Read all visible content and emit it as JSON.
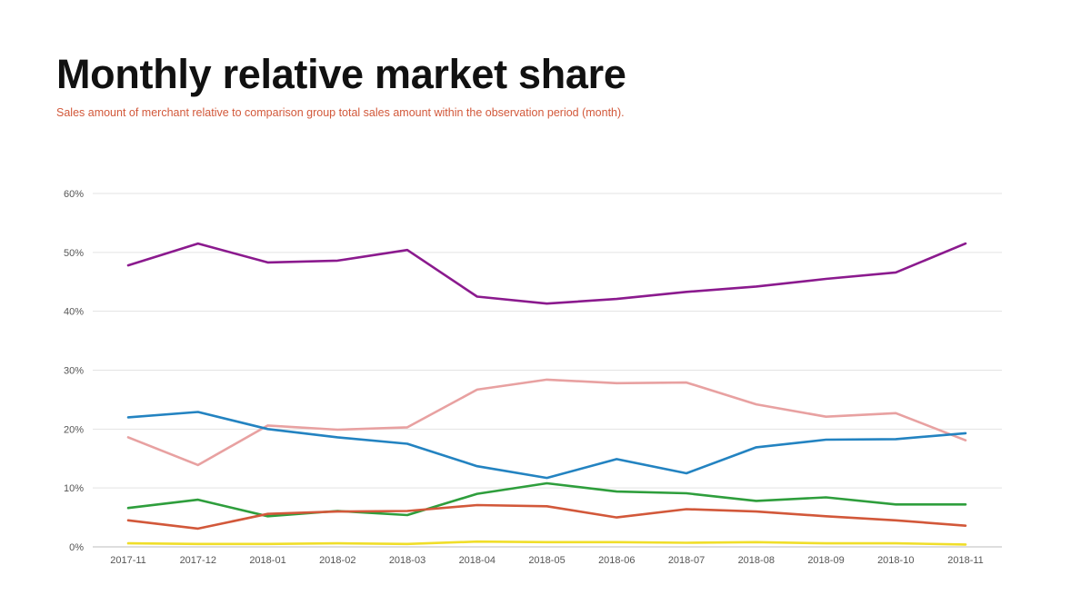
{
  "page": {
    "title": "Monthly relative market share",
    "subtitle": "Sales amount of merchant relative to comparison group total sales amount within the observation period (month)."
  },
  "chart_data": {
    "type": "line",
    "title": "Monthly relative market share",
    "subtitle": "Sales amount of merchant relative to comparison group total sales amount within the observation period (month).",
    "xlabel": "",
    "ylabel": "",
    "y_tick_format": "percent",
    "ylim": [
      0,
      60
    ],
    "y_ticks": [
      0,
      10,
      20,
      30,
      40,
      50,
      60
    ],
    "y_tick_labels": [
      "0%",
      "10%",
      "20%",
      "30%",
      "40%",
      "50%",
      "60%"
    ],
    "grid": "horizontal",
    "legend": "none",
    "x": [
      "2017-11",
      "2017-12",
      "2018-01",
      "2018-02",
      "2018-03",
      "2018-04",
      "2018-05",
      "2018-06",
      "2018-07",
      "2018-08",
      "2018-09",
      "2018-10",
      "2018-11"
    ],
    "series": [
      {
        "color": "#8b1a8e",
        "values": [
          47.8,
          51.5,
          48.3,
          48.6,
          50.4,
          42.5,
          41.3,
          42.1,
          43.3,
          44.2,
          45.5,
          46.6,
          51.5
        ]
      },
      {
        "color": "#e8a1a1",
        "values": [
          18.6,
          13.9,
          20.6,
          19.9,
          20.3,
          26.7,
          28.4,
          27.8,
          27.9,
          24.2,
          22.1,
          22.7,
          18.1
        ]
      },
      {
        "color": "#2383c1",
        "values": [
          22.0,
          22.9,
          20.0,
          18.6,
          17.5,
          13.7,
          11.7,
          14.9,
          12.5,
          16.9,
          18.2,
          18.3,
          19.3
        ]
      },
      {
        "color": "#2e9e3c",
        "values": [
          6.6,
          8.0,
          5.2,
          6.1,
          5.4,
          9.0,
          10.8,
          9.4,
          9.1,
          7.8,
          8.4,
          7.2,
          7.2
        ]
      },
      {
        "color": "#d2583a",
        "values": [
          4.5,
          3.1,
          5.6,
          6.0,
          6.1,
          7.1,
          6.9,
          5.0,
          6.4,
          6.0,
          5.2,
          4.5,
          3.6
        ]
      },
      {
        "color": "#f0de2a",
        "values": [
          0.6,
          0.5,
          0.5,
          0.6,
          0.5,
          0.9,
          0.8,
          0.8,
          0.7,
          0.8,
          0.6,
          0.6,
          0.4
        ]
      }
    ]
  }
}
